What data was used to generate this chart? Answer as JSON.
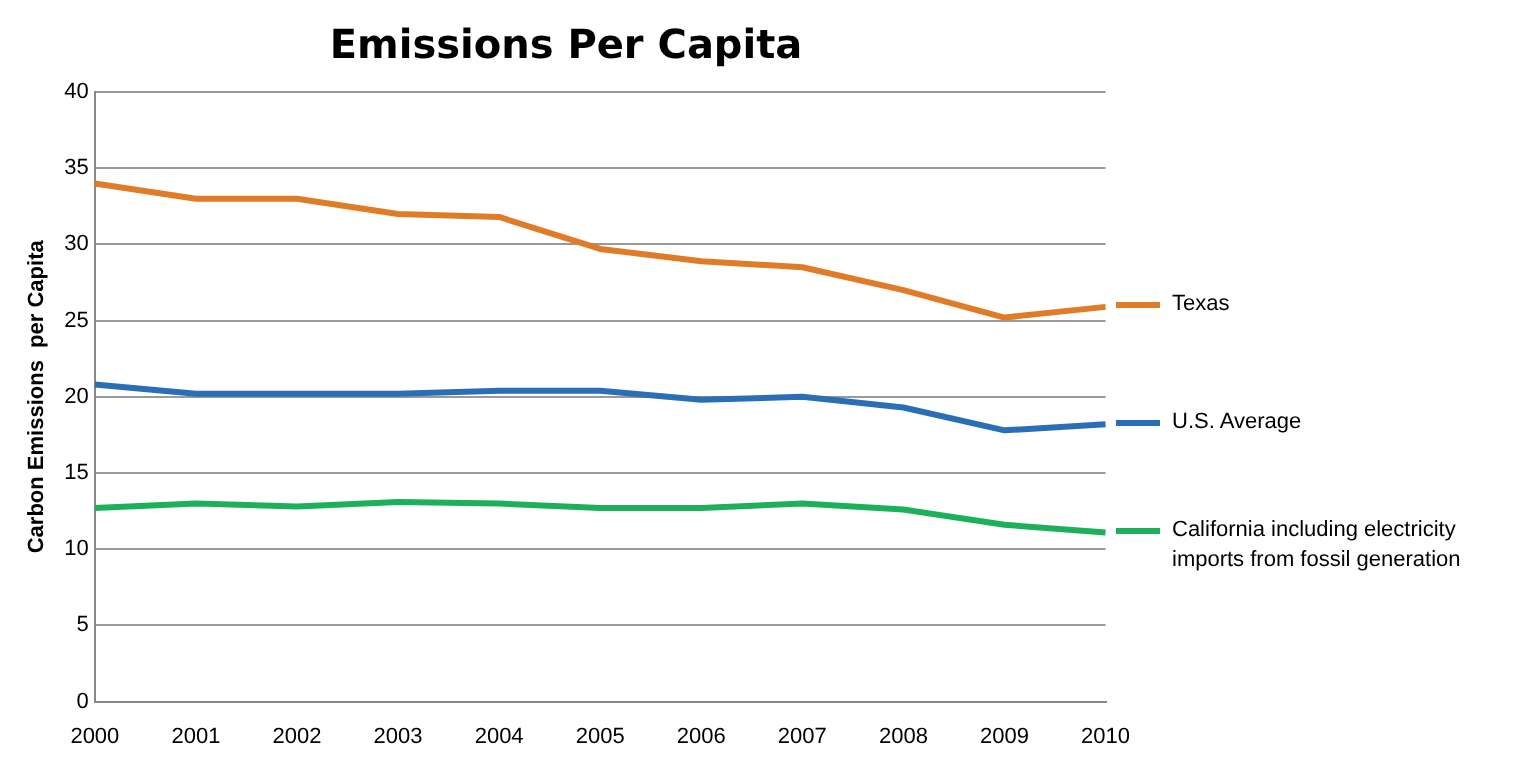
{
  "chart_data": {
    "type": "line",
    "title": "Emissions Per Capita",
    "ylabel": "Carbon Emissions  per Capita",
    "categories": [
      "2000",
      "2001",
      "2002",
      "2003",
      "2004",
      "2005",
      "2006",
      "2007",
      "2008",
      "2009",
      "2010"
    ],
    "series": [
      {
        "name": "Texas",
        "color": "#e07b28",
        "values": [
          34.0,
          33.0,
          33.0,
          32.0,
          31.8,
          29.7,
          28.9,
          28.5,
          27.0,
          25.2,
          25.9
        ]
      },
      {
        "name": "U.S. Average",
        "color": "#2a6fb5",
        "values": [
          20.8,
          20.2,
          20.2,
          20.2,
          20.4,
          20.4,
          19.8,
          20.0,
          19.3,
          17.8,
          18.2
        ]
      },
      {
        "name": "California including electricity imports from fossil generation",
        "color": "#1db05a",
        "values": [
          12.7,
          13.0,
          12.8,
          13.1,
          13.0,
          12.7,
          12.7,
          13.0,
          12.6,
          11.6,
          11.1
        ]
      }
    ],
    "ylim": [
      0,
      40
    ],
    "yticks": [
      0,
      5,
      10,
      15,
      20,
      25,
      30,
      35,
      40
    ],
    "grid": "y",
    "legend": "right",
    "marker": "none",
    "line_style": "solid"
  }
}
